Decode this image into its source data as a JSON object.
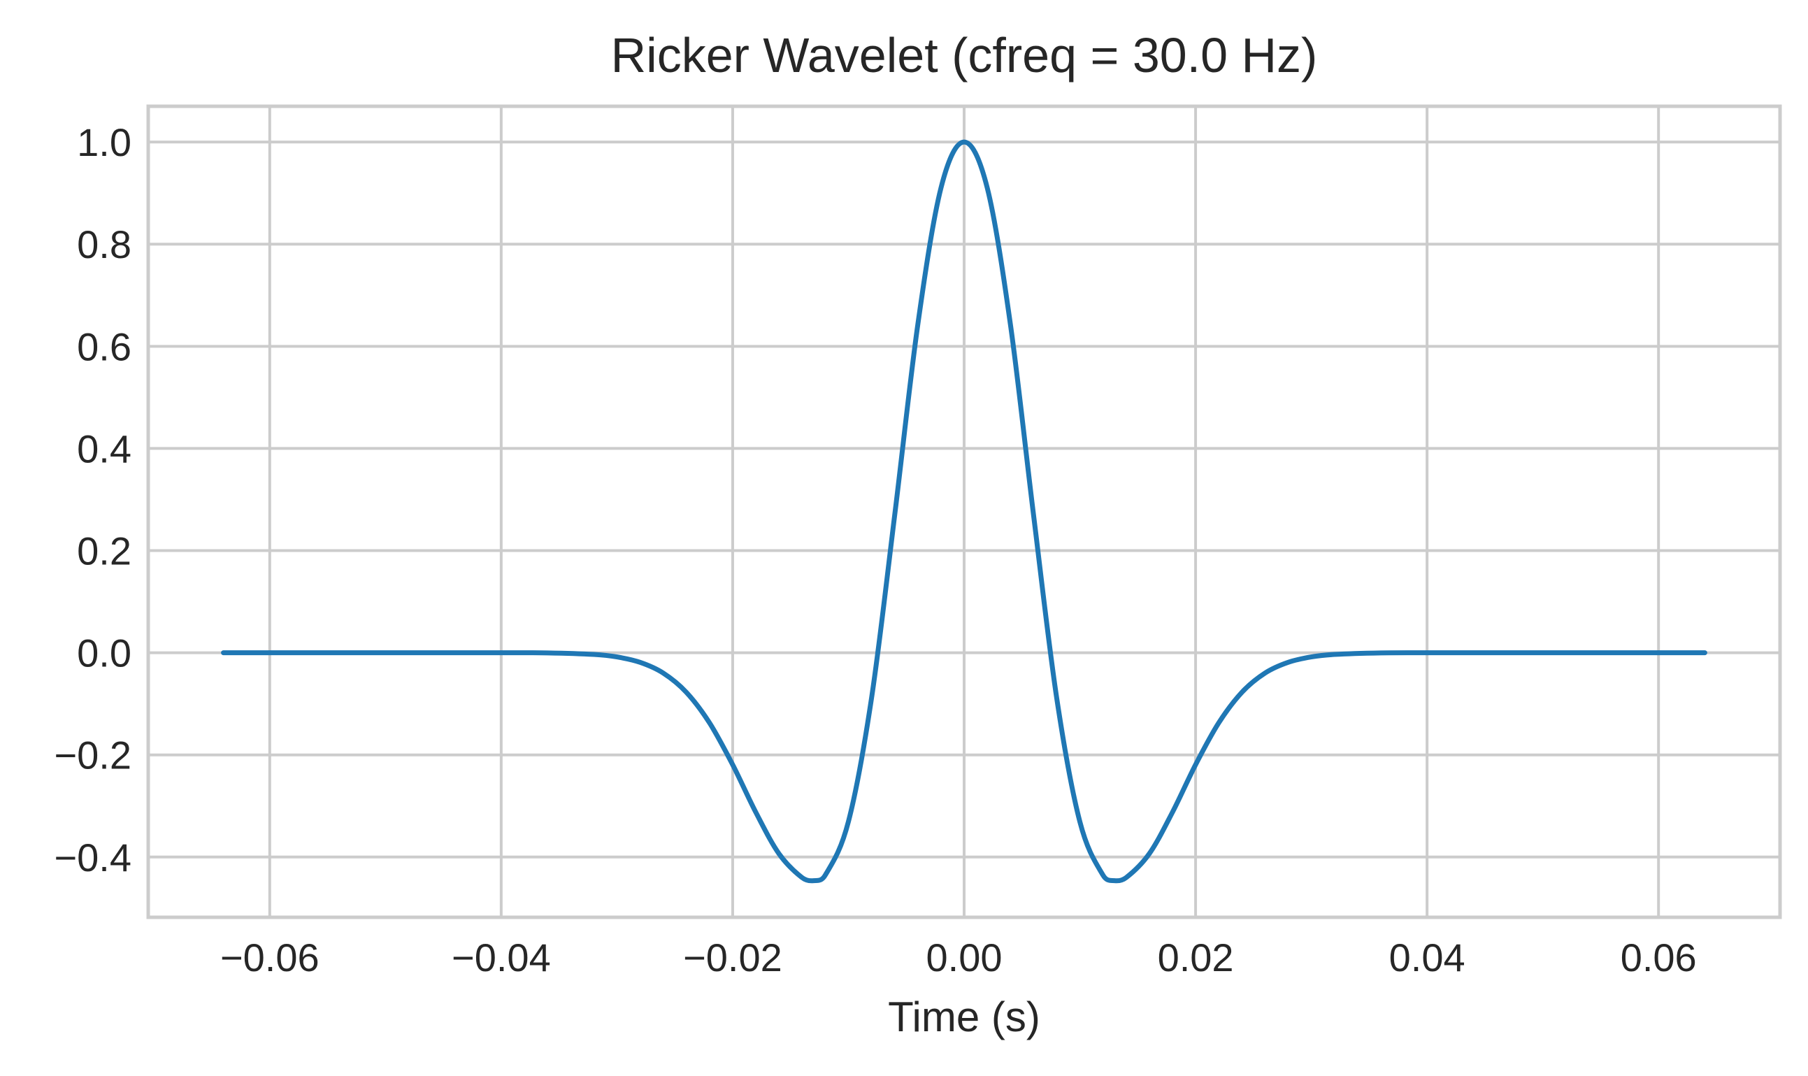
{
  "chart_data": {
    "type": "line",
    "title": "Ricker Wavelet (cfreq = 30.0 Hz)",
    "xlabel": "Time (s)",
    "ylabel": "",
    "xlim": [
      -0.0705,
      0.0705
    ],
    "ylim": [
      -0.518,
      1.07
    ],
    "xticks": [
      -0.06,
      -0.04,
      -0.02,
      0.0,
      0.02,
      0.04,
      0.06
    ],
    "xtick_labels": [
      "−0.06",
      "−0.04",
      "−0.02",
      "0.00",
      "0.02",
      "0.04",
      "0.06"
    ],
    "yticks": [
      -0.4,
      -0.2,
      0.0,
      0.2,
      0.4,
      0.6,
      0.8,
      1.0
    ],
    "ytick_labels": [
      "−0.4",
      "−0.2",
      "0.0",
      "0.2",
      "0.4",
      "0.6",
      "0.8",
      "1.0"
    ],
    "grid": true,
    "legend": false,
    "colors": {
      "series": "#1f77b4",
      "grid": "#cccccc",
      "text": "#262626"
    },
    "series": [
      {
        "x": [
          -0.064,
          -0.056,
          -0.048,
          -0.04,
          -0.036,
          -0.032,
          -0.03,
          -0.028,
          -0.026,
          -0.024,
          -0.022,
          -0.02,
          -0.018,
          -0.016,
          -0.014,
          -0.013,
          -0.012,
          -0.01,
          -0.008,
          -0.006,
          -0.004,
          -0.002,
          0.0,
          0.002,
          0.004,
          0.006,
          0.008,
          0.01,
          0.012,
          0.013,
          0.014,
          0.016,
          0.018,
          0.02,
          0.022,
          0.024,
          0.026,
          0.028,
          0.03,
          0.032,
          0.036,
          0.04,
          0.048,
          0.056,
          0.064
        ],
        "y": [
          0.0,
          0.0,
          0.0,
          0.0,
          -0.0003,
          -0.0033,
          -0.0082,
          -0.0188,
          -0.0398,
          -0.0775,
          -0.1373,
          -0.2192,
          -0.3124,
          -0.3935,
          -0.4403,
          -0.4463,
          -0.4355,
          -0.3308,
          -0.0888,
          0.2694,
          0.6429,
          0.9101,
          1.0,
          0.9101,
          0.6429,
          0.2694,
          -0.0888,
          -0.3308,
          -0.4355,
          -0.4463,
          -0.4403,
          -0.3935,
          -0.3124,
          -0.2192,
          -0.1373,
          -0.0775,
          -0.0398,
          -0.0188,
          -0.0082,
          -0.0033,
          -0.0003,
          0.0,
          0.0,
          0.0,
          0.0
        ]
      }
    ]
  }
}
